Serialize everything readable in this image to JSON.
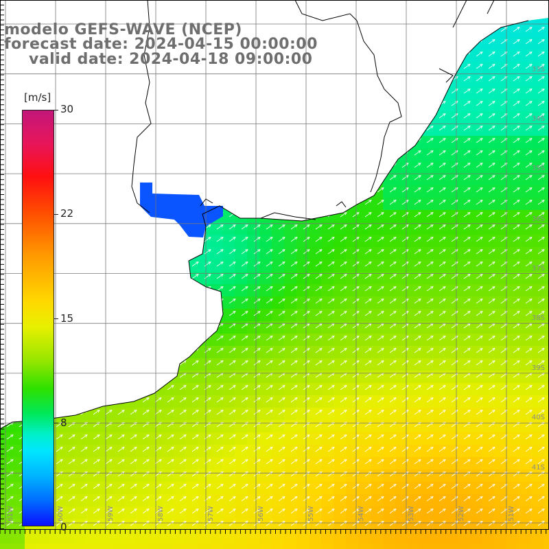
{
  "title": {
    "line1": "modelo GEFS-WAVE (NCEP)",
    "line2": "forecast date: 2024-04-15 00:00:00",
    "line3": "valid date: 2024-04-18 09:00:00"
  },
  "colorbar": {
    "unit": "[m/s]",
    "ticks": [
      "30",
      "22",
      "15",
      "8",
      "0"
    ],
    "tick_values": [
      30,
      22,
      15,
      8,
      0
    ],
    "range": [
      0,
      30
    ],
    "colors": [
      "#0a10ff",
      "#006cff",
      "#00e6ff",
      "#00e85a",
      "#2ee000",
      "#e8f000",
      "#ffd800",
      "#ff9a00",
      "#ff1010",
      "#c2177a"
    ]
  },
  "axes": {
    "lat_labels": [
      "33S",
      "34S",
      "35S",
      "36S",
      "37S",
      "38S",
      "39S",
      "40S",
      "41S"
    ],
    "lon_labels": [
      "61W",
      "60W",
      "59W",
      "58W",
      "57W",
      "56W",
      "55W",
      "54W",
      "53W",
      "52W",
      "51W"
    ],
    "grid": true
  },
  "field": {
    "variable": "wind speed",
    "land_color": "#ffffff",
    "coast_color": "#000000",
    "arrow_color": "#ffffff",
    "arrow_direction": "toward northeast"
  }
}
